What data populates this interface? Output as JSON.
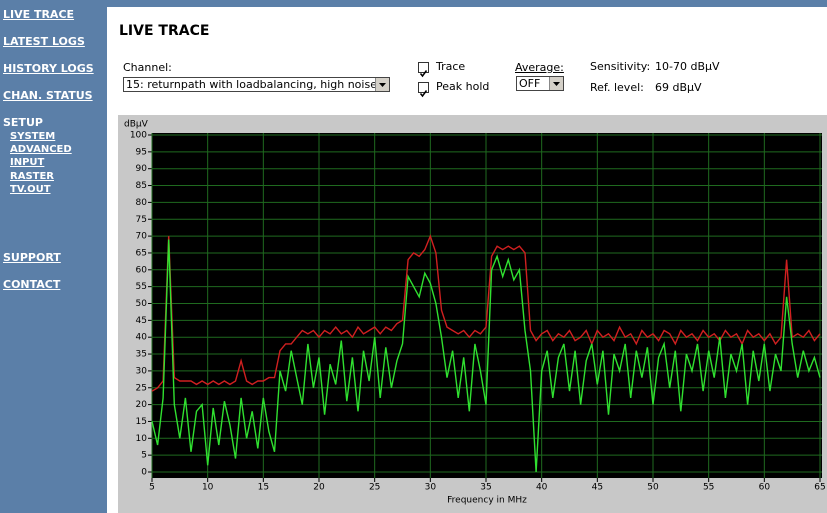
{
  "sidebar": {
    "nav": [
      "LIVE TRACE",
      "LATEST LOGS",
      "HISTORY LOGS",
      "CHAN. STATUS"
    ],
    "setup": {
      "label": "SETUP",
      "items": [
        "SYSTEM",
        "ADVANCED",
        "INPUT",
        "RASTER",
        "TV.OUT"
      ]
    },
    "nav_bottom": [
      "SUPPORT",
      "CONTACT"
    ]
  },
  "header": {
    "title": "LIVE TRACE"
  },
  "controls": {
    "channel_label": "Channel:",
    "channel_value": "15: returnpath with loadbalancing, high noise",
    "trace_label": "Trace",
    "trace_checked": true,
    "peak_label": "Peak hold",
    "peak_checked": true,
    "average_label": "Average:",
    "average_value": "OFF",
    "sensitivity_label": "Sensitivity:",
    "sensitivity_value": "10-70 dBµV",
    "ref_label": "Ref. level:",
    "ref_value": "69 dBµV"
  },
  "chart_data": {
    "type": "line",
    "y_unit_label": "dBµV",
    "xlabel": "Frequency in MHz",
    "grid": true,
    "xlim": [
      5,
      65
    ],
    "ylim": [
      0,
      100
    ],
    "xticks": [
      5,
      10,
      15,
      20,
      25,
      30,
      35,
      40,
      45,
      50,
      55,
      60,
      65
    ],
    "yticks": [
      0,
      5,
      10,
      15,
      20,
      25,
      30,
      35,
      40,
      45,
      50,
      55,
      60,
      65,
      70,
      75,
      80,
      85,
      90,
      95,
      100
    ],
    "x": [
      5,
      5.5,
      6,
      6.5,
      7,
      7.5,
      8,
      8.5,
      9,
      9.5,
      10,
      10.5,
      11,
      11.5,
      12,
      12.5,
      13,
      13.5,
      14,
      14.5,
      15,
      15.5,
      16,
      16.5,
      17,
      17.5,
      18,
      18.5,
      19,
      19.5,
      20,
      20.5,
      21,
      21.5,
      22,
      22.5,
      23,
      23.5,
      24,
      24.5,
      25,
      25.5,
      26,
      26.5,
      27,
      27.5,
      28,
      28.5,
      29,
      29.5,
      30,
      30.5,
      31,
      31.5,
      32,
      32.5,
      33,
      33.5,
      34,
      34.5,
      35,
      35.5,
      36,
      36.5,
      37,
      37.5,
      38,
      38.5,
      39,
      39.5,
      40,
      40.5,
      41,
      41.5,
      42,
      42.5,
      43,
      43.5,
      44,
      44.5,
      45,
      45.5,
      46,
      46.5,
      47,
      47.5,
      48,
      48.5,
      49,
      49.5,
      50,
      50.5,
      51,
      51.5,
      52,
      52.5,
      53,
      53.5,
      54,
      54.5,
      55,
      55.5,
      56,
      56.5,
      57,
      57.5,
      58,
      58.5,
      59,
      59.5,
      60,
      60.5,
      61,
      61.5,
      62,
      62.5,
      63,
      63.5,
      64,
      64.5,
      65
    ],
    "series": [
      {
        "name": "Peak hold",
        "color": "#d02020",
        "values": [
          24,
          25,
          27,
          70,
          28,
          27,
          27,
          27,
          26,
          27,
          26,
          27,
          26,
          27,
          26,
          27,
          33,
          27,
          26,
          27,
          27,
          28,
          28,
          36,
          38,
          38,
          40,
          42,
          41,
          42,
          40,
          42,
          41,
          43,
          41,
          42,
          40,
          43,
          41,
          42,
          43,
          41,
          43,
          42,
          44,
          45,
          63,
          65,
          64,
          66,
          70,
          65,
          48,
          43,
          42,
          41,
          42,
          40,
          42,
          41,
          43,
          64,
          67,
          66,
          67,
          66,
          67,
          65,
          42,
          39,
          41,
          42,
          39,
          41,
          40,
          42,
          39,
          40,
          42,
          38,
          42,
          40,
          41,
          39,
          43,
          40,
          41,
          38,
          42,
          40,
          41,
          39,
          42,
          41,
          38,
          42,
          40,
          41,
          39,
          42,
          40,
          41,
          39,
          42,
          40,
          41,
          38,
          42,
          40,
          41,
          39,
          41,
          38,
          40,
          63,
          40,
          41,
          40,
          42,
          39,
          41
        ]
      },
      {
        "name": "Trace",
        "color": "#30e030",
        "values": [
          15,
          8,
          22,
          69,
          20,
          10,
          22,
          6,
          18,
          20,
          2,
          19,
          8,
          21,
          14,
          4,
          22,
          10,
          18,
          7,
          22,
          12,
          6,
          30,
          24,
          36,
          28,
          20,
          38,
          25,
          34,
          17,
          32,
          26,
          39,
          21,
          34,
          18,
          36,
          27,
          40,
          22,
          37,
          25,
          33,
          38,
          58,
          55,
          52,
          59,
          56,
          50,
          40,
          28,
          36,
          22,
          34,
          18,
          38,
          30,
          20,
          60,
          64,
          58,
          63,
          57,
          60,
          42,
          30,
          0,
          30,
          36,
          22,
          34,
          38,
          24,
          36,
          20,
          33,
          38,
          26,
          36,
          17,
          35,
          30,
          38,
          22,
          36,
          28,
          37,
          20,
          34,
          38,
          25,
          36,
          18,
          35,
          30,
          38,
          24,
          36,
          28,
          40,
          22,
          35,
          30,
          38,
          20,
          36,
          27,
          38,
          24,
          35,
          30,
          52,
          38,
          28,
          36,
          30,
          34,
          28
        ]
      }
    ]
  }
}
